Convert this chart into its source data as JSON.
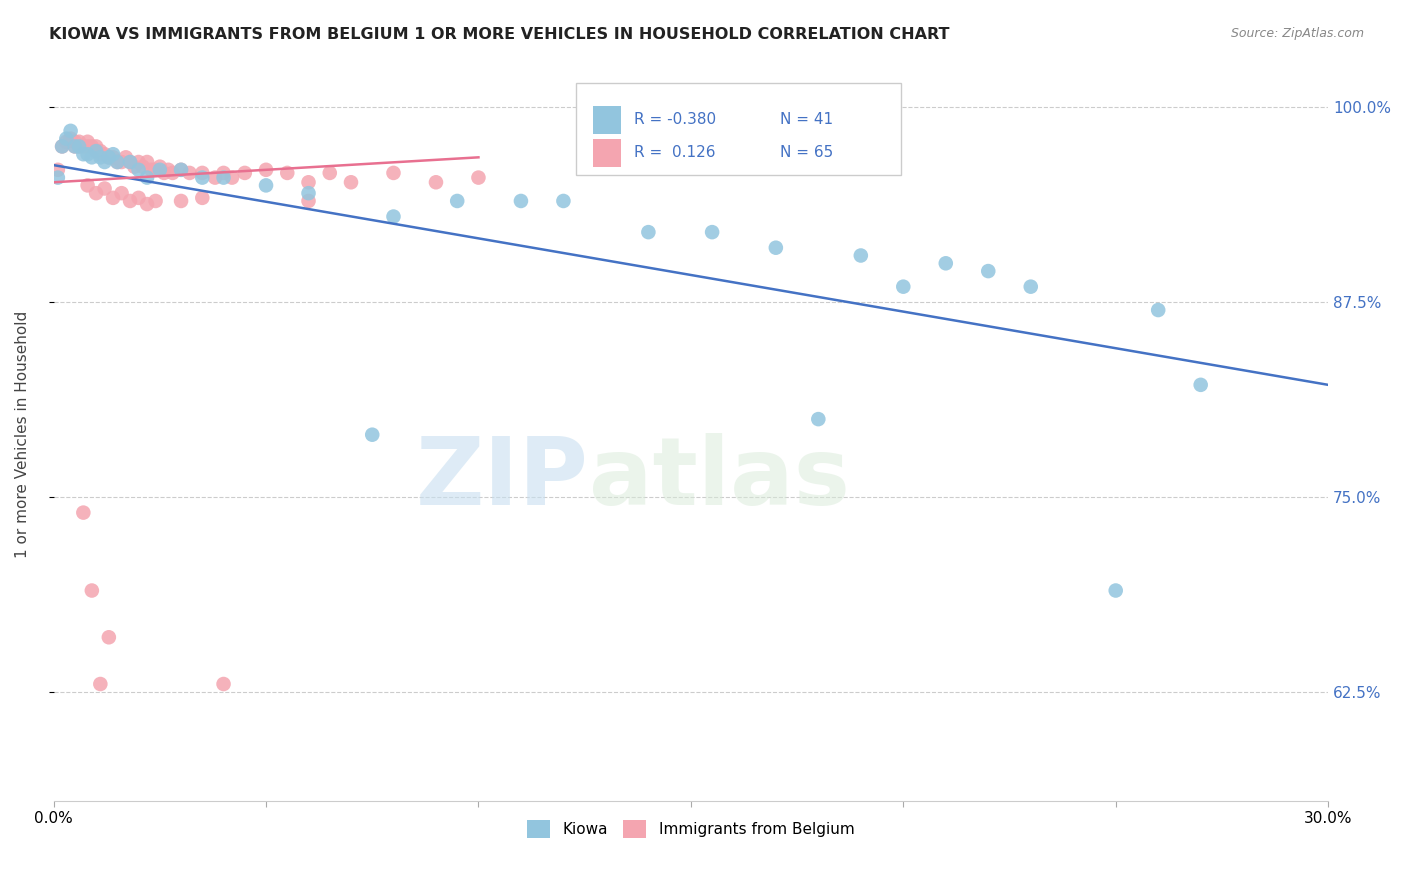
{
  "title": "KIOWA VS IMMIGRANTS FROM BELGIUM 1 OR MORE VEHICLES IN HOUSEHOLD CORRELATION CHART",
  "source": "Source: ZipAtlas.com",
  "ylabel": "1 or more Vehicles in Household",
  "xmin": 0.0,
  "xmax": 0.3,
  "ymin": 0.555,
  "ymax": 1.025,
  "yticks": [
    0.625,
    0.75,
    0.875,
    1.0
  ],
  "ytick_labels": [
    "62.5%",
    "75.0%",
    "87.5%",
    "100.0%"
  ],
  "xticks": [
    0.0,
    0.05,
    0.1,
    0.15,
    0.2,
    0.25,
    0.3
  ],
  "xtick_labels": [
    "0.0%",
    "",
    "",
    "",
    "",
    "",
    "30.0%"
  ],
  "legend_r_blue": "-0.380",
  "legend_n_blue": "41",
  "legend_r_pink": "0.126",
  "legend_n_pink": "65",
  "blue_color": "#92C5DE",
  "pink_color": "#F4A5B0",
  "trendline_blue": "#4472C4",
  "trendline_pink": "#E87090",
  "watermark_zip": "ZIP",
  "watermark_atlas": "atlas",
  "kiowa_x": [
    0.001,
    0.002,
    0.003,
    0.004,
    0.005,
    0.006,
    0.007,
    0.008,
    0.009,
    0.01,
    0.011,
    0.012,
    0.013,
    0.014,
    0.015,
    0.018,
    0.02,
    0.022,
    0.025,
    0.03,
    0.035,
    0.04,
    0.05,
    0.06,
    0.08,
    0.095,
    0.11,
    0.12,
    0.14,
    0.155,
    0.17,
    0.19,
    0.21,
    0.22,
    0.23,
    0.26,
    0.27,
    0.18,
    0.075,
    0.2,
    0.25
  ],
  "kiowa_y": [
    0.955,
    0.975,
    0.98,
    0.985,
    0.975,
    0.975,
    0.97,
    0.97,
    0.968,
    0.972,
    0.968,
    0.965,
    0.968,
    0.97,
    0.965,
    0.965,
    0.96,
    0.955,
    0.96,
    0.96,
    0.955,
    0.955,
    0.95,
    0.945,
    0.93,
    0.94,
    0.94,
    0.94,
    0.92,
    0.92,
    0.91,
    0.905,
    0.9,
    0.895,
    0.885,
    0.87,
    0.822,
    0.8,
    0.79,
    0.885,
    0.69
  ],
  "belgium_x": [
    0.001,
    0.002,
    0.003,
    0.004,
    0.005,
    0.005,
    0.006,
    0.006,
    0.007,
    0.008,
    0.008,
    0.009,
    0.01,
    0.01,
    0.011,
    0.011,
    0.012,
    0.013,
    0.014,
    0.015,
    0.016,
    0.017,
    0.018,
    0.019,
    0.02,
    0.021,
    0.022,
    0.023,
    0.024,
    0.025,
    0.026,
    0.027,
    0.028,
    0.03,
    0.032,
    0.035,
    0.038,
    0.04,
    0.042,
    0.045,
    0.05,
    0.055,
    0.06,
    0.065,
    0.07,
    0.08,
    0.09,
    0.1,
    0.03,
    0.035,
    0.008,
    0.01,
    0.012,
    0.014,
    0.016,
    0.018,
    0.02,
    0.022,
    0.024,
    0.007,
    0.009,
    0.011,
    0.013,
    0.06,
    0.04
  ],
  "belgium_y": [
    0.96,
    0.975,
    0.978,
    0.98,
    0.978,
    0.975,
    0.978,
    0.975,
    0.975,
    0.978,
    0.975,
    0.975,
    0.975,
    0.972,
    0.972,
    0.97,
    0.97,
    0.968,
    0.968,
    0.965,
    0.965,
    0.968,
    0.965,
    0.962,
    0.965,
    0.962,
    0.965,
    0.96,
    0.96,
    0.962,
    0.958,
    0.96,
    0.958,
    0.96,
    0.958,
    0.958,
    0.955,
    0.958,
    0.955,
    0.958,
    0.96,
    0.958,
    0.952,
    0.958,
    0.952,
    0.958,
    0.952,
    0.955,
    0.94,
    0.942,
    0.95,
    0.945,
    0.948,
    0.942,
    0.945,
    0.94,
    0.942,
    0.938,
    0.94,
    0.74,
    0.69,
    0.63,
    0.66,
    0.94,
    0.63
  ]
}
